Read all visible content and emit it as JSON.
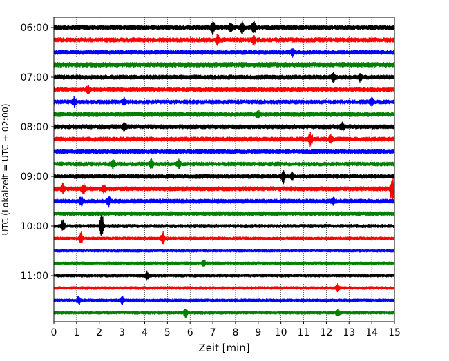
{
  "chart_data": {
    "type": "line",
    "subtype": "seismogram-dayplot",
    "xlabel": "Zeit  [min]",
    "ylabel": "UTC (Lokalzeit = UTC + 02:00)",
    "x_ticks": [
      "0",
      "1",
      "2",
      "3",
      "4",
      "5",
      "6",
      "7",
      "8",
      "9",
      "10",
      "11",
      "12",
      "13",
      "14",
      "15"
    ],
    "xlim": [
      0,
      15
    ],
    "y_ticks": [
      "06:00",
      "07:00",
      "08:00",
      "09:00",
      "10:00",
      "11:00"
    ],
    "trace_minutes": 15,
    "vertical_grid": "dotted",
    "trace_colors": [
      "#000000",
      "#ff0000",
      "#0000ff",
      "#008000"
    ],
    "traces": [
      {
        "start": "06:00",
        "amplitude": 0.85,
        "events": [
          [
            7.0,
            2.2
          ],
          [
            7.8,
            2.0
          ],
          [
            8.3,
            2.4
          ],
          [
            8.8,
            2.3
          ]
        ]
      },
      {
        "start": "06:15",
        "amplitude": 0.85,
        "events": [
          [
            7.2,
            2.0
          ],
          [
            8.8,
            1.6
          ]
        ]
      },
      {
        "start": "06:30",
        "amplitude": 0.8,
        "events": [
          [
            10.5,
            1.4
          ]
        ]
      },
      {
        "start": "06:45",
        "amplitude": 0.9,
        "events": []
      },
      {
        "start": "07:00",
        "amplitude": 0.8,
        "events": [
          [
            12.3,
            1.6
          ],
          [
            13.5,
            1.8
          ]
        ]
      },
      {
        "start": "07:15",
        "amplitude": 0.75,
        "events": [
          [
            1.5,
            1.7
          ]
        ]
      },
      {
        "start": "07:30",
        "amplitude": 0.8,
        "events": [
          [
            0.9,
            1.6
          ],
          [
            3.1,
            1.4
          ],
          [
            14.0,
            1.4
          ]
        ]
      },
      {
        "start": "07:45",
        "amplitude": 0.85,
        "events": [
          [
            9.0,
            1.3
          ]
        ]
      },
      {
        "start": "08:00",
        "amplitude": 0.8,
        "events": [
          [
            3.1,
            1.5
          ],
          [
            12.7,
            1.5
          ]
        ]
      },
      {
        "start": "08:15",
        "amplitude": 0.8,
        "events": [
          [
            11.3,
            3.3
          ],
          [
            12.2,
            1.3
          ]
        ]
      },
      {
        "start": "08:30",
        "amplitude": 0.8,
        "events": []
      },
      {
        "start": "08:45",
        "amplitude": 0.75,
        "events": [
          [
            2.6,
            1.6
          ],
          [
            4.3,
            1.8
          ],
          [
            5.5,
            1.5
          ]
        ]
      },
      {
        "start": "09:00",
        "amplitude": 0.8,
        "events": [
          [
            10.1,
            2.5
          ],
          [
            10.5,
            1.5
          ]
        ]
      },
      {
        "start": "09:15",
        "amplitude": 0.8,
        "events": [
          [
            0.4,
            1.6
          ],
          [
            1.3,
            1.8
          ],
          [
            2.2,
            1.5
          ],
          [
            14.9,
            5.8
          ]
        ]
      },
      {
        "start": "09:30",
        "amplitude": 0.8,
        "events": [
          [
            1.2,
            2.0
          ],
          [
            2.4,
            1.8
          ],
          [
            12.3,
            1.3
          ]
        ]
      },
      {
        "start": "09:45",
        "amplitude": 0.75,
        "events": []
      },
      {
        "start": "10:00",
        "amplitude": 0.65,
        "events": [
          [
            0.4,
            2.0
          ],
          [
            2.1,
            5.5
          ]
        ]
      },
      {
        "start": "10:15",
        "amplitude": 0.55,
        "events": [
          [
            1.2,
            2.5
          ],
          [
            4.8,
            2.3
          ]
        ]
      },
      {
        "start": "10:30",
        "amplitude": 0.5,
        "events": []
      },
      {
        "start": "10:45",
        "amplitude": 0.5,
        "events": [
          [
            6.6,
            1.2
          ]
        ]
      },
      {
        "start": "11:00",
        "amplitude": 0.55,
        "events": [
          [
            4.1,
            1.6
          ]
        ]
      },
      {
        "start": "11:15",
        "amplitude": 0.55,
        "events": [
          [
            12.5,
            1.2
          ]
        ]
      },
      {
        "start": "11:30",
        "amplitude": 0.55,
        "events": [
          [
            1.1,
            1.5
          ],
          [
            3.0,
            1.4
          ]
        ]
      },
      {
        "start": "11:45",
        "amplitude": 0.55,
        "events": [
          [
            5.8,
            1.7
          ],
          [
            12.5,
            1.3
          ]
        ]
      }
    ]
  }
}
